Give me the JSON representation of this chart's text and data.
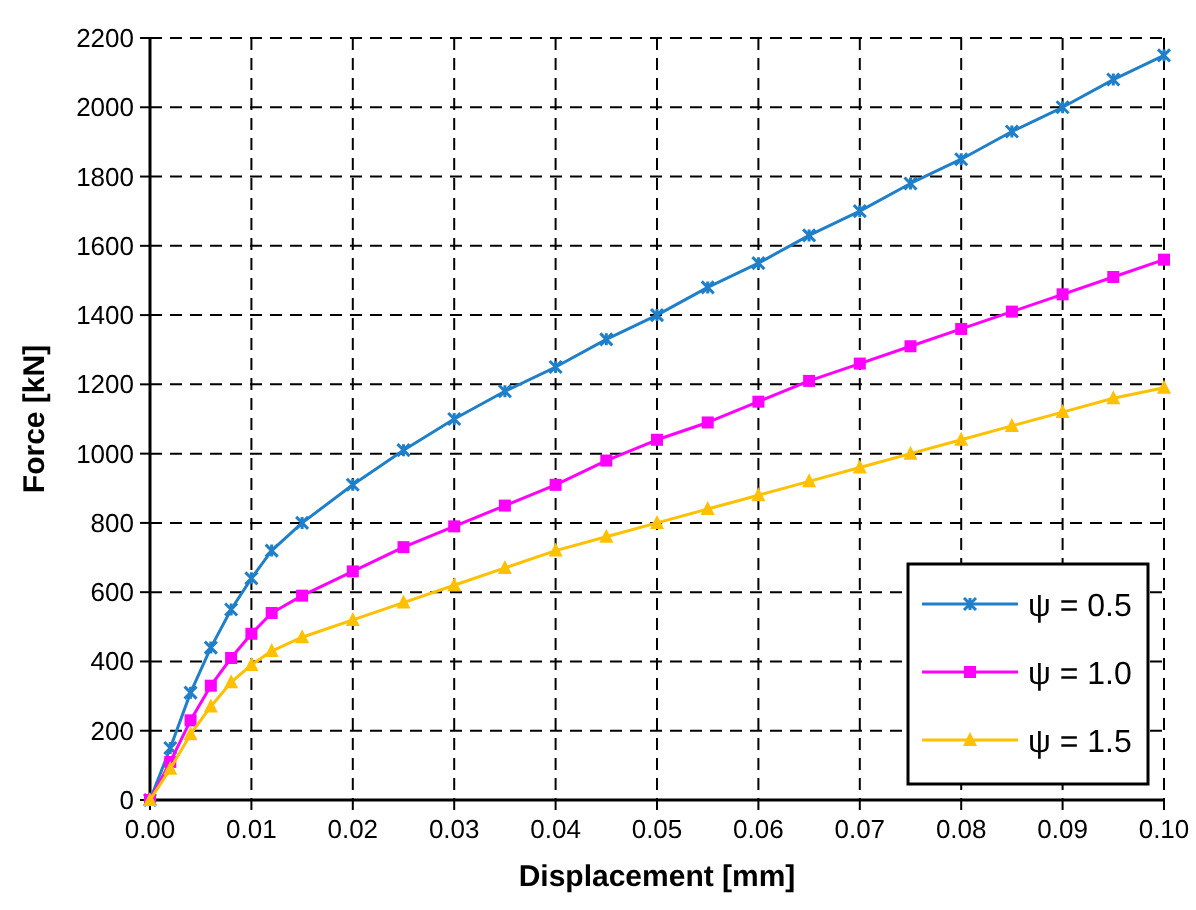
{
  "chart_data": {
    "type": "line",
    "xlabel": "Displacement [mm]",
    "ylabel": "Force [kN]",
    "x": [
      0,
      0.002,
      0.004,
      0.006,
      0.008,
      0.01,
      0.012,
      0.015,
      0.02,
      0.025,
      0.03,
      0.035,
      0.04,
      0.045,
      0.05,
      0.055,
      0.06,
      0.065,
      0.07,
      0.075,
      0.08,
      0.085,
      0.09,
      0.095,
      0.1
    ],
    "series": [
      {
        "name": "ψ = 0.5",
        "color": "#1f7fc8",
        "marker": "cross",
        "values": [
          0,
          150,
          310,
          440,
          550,
          640,
          720,
          800,
          910,
          1010,
          1100,
          1180,
          1250,
          1330,
          1400,
          1480,
          1550,
          1630,
          1700,
          1780,
          1850,
          1930,
          2000,
          2080,
          2150
        ]
      },
      {
        "name": "ψ = 1.0",
        "color": "#ff00ff",
        "marker": "square",
        "values": [
          0,
          110,
          230,
          330,
          410,
          480,
          540,
          590,
          660,
          730,
          790,
          850,
          910,
          980,
          1040,
          1090,
          1150,
          1210,
          1260,
          1310,
          1360,
          1410,
          1460,
          1510,
          1560
        ]
      },
      {
        "name": "ψ = 1.5",
        "color": "#ffc000",
        "marker": "triangle",
        "values": [
          0,
          90,
          190,
          270,
          340,
          390,
          430,
          470,
          520,
          570,
          620,
          670,
          720,
          760,
          800,
          840,
          880,
          920,
          960,
          1000,
          1040,
          1080,
          1120,
          1160,
          1190
        ]
      }
    ],
    "xlim": [
      0,
      0.1
    ],
    "xticks": [
      {
        "value": 0,
        "label": "0.00"
      },
      {
        "value": 0.01,
        "label": "0.01"
      },
      {
        "value": 0.02,
        "label": "0.02"
      },
      {
        "value": 0.03,
        "label": "0.03"
      },
      {
        "value": 0.04,
        "label": "0.04"
      },
      {
        "value": 0.05,
        "label": "0.05"
      },
      {
        "value": 0.06,
        "label": "0.06"
      },
      {
        "value": 0.07,
        "label": "0.07"
      },
      {
        "value": 0.08,
        "label": "0.08"
      },
      {
        "value": 0.09,
        "label": "0.09"
      },
      {
        "value": 0.1,
        "label": "0.10"
      }
    ],
    "ylim": [
      0,
      2200
    ],
    "yticks": [
      0,
      200,
      400,
      600,
      800,
      1000,
      1200,
      1400,
      1600,
      1800,
      2000,
      2200
    ],
    "grid": true,
    "legend": "bottom right",
    "line_style": "solid"
  }
}
